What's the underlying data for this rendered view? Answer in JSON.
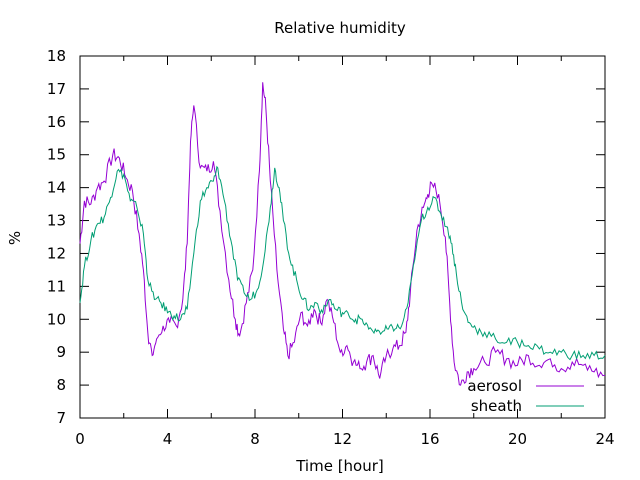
{
  "chart_data": {
    "type": "line",
    "title": "Relative humidity",
    "xlabel": "Time [hour]",
    "ylabel": "%",
    "xlim": [
      0,
      24
    ],
    "ylim": [
      7,
      18
    ],
    "xticks": [
      0,
      4,
      8,
      12,
      16,
      20,
      24
    ],
    "yticks": [
      7,
      8,
      9,
      10,
      11,
      12,
      13,
      14,
      15,
      16,
      17,
      18
    ],
    "grid": false,
    "legend_position": "bottom-right",
    "series": [
      {
        "name": "aerosol",
        "color": "#9400d3",
        "x": [
          0,
          0.2,
          0.5,
          0.8,
          1.1,
          1.5,
          1.8,
          2.1,
          2.4,
          2.7,
          2.9,
          3.1,
          3.3,
          3.5,
          3.8,
          4.1,
          4.4,
          4.7,
          4.9,
          5.05,
          5.2,
          5.5,
          5.8,
          6.1,
          6.4,
          6.8,
          7.1,
          7.3,
          7.6,
          7.9,
          8.2,
          8.35,
          8.5,
          8.7,
          9.0,
          9.3,
          9.5,
          9.8,
          10.1,
          10.4,
          10.7,
          11.0,
          11.3,
          11.6,
          11.9,
          12.2,
          12.5,
          12.8,
          13.1,
          13.4,
          13.7,
          14.0,
          14.3,
          14.6,
          14.9,
          15.1,
          15.4,
          15.7,
          15.9,
          16.1,
          16.4,
          16.7,
          16.9,
          17.1,
          17.4,
          17.7,
          18.0,
          18.5,
          19.0,
          19.5,
          20.0,
          20.5,
          21.0,
          21.5,
          22.0,
          22.5,
          23.0,
          23.5,
          24.0
        ],
        "values": [
          12.3,
          13.6,
          13.5,
          14.0,
          14.2,
          15.0,
          14.9,
          14.3,
          13.9,
          12.6,
          11.5,
          9.6,
          8.9,
          9.4,
          9.8,
          9.9,
          9.8,
          10.6,
          12.3,
          15.4,
          16.5,
          14.6,
          14.5,
          14.8,
          13.3,
          11.2,
          10.0,
          9.5,
          10.5,
          11.5,
          14.5,
          17.2,
          16.4,
          14.2,
          11.5,
          9.7,
          8.9,
          9.3,
          10.2,
          9.8,
          10.3,
          9.9,
          10.6,
          9.9,
          9.0,
          9.2,
          8.7,
          8.5,
          8.7,
          8.9,
          8.2,
          8.9,
          9.1,
          9.2,
          9.6,
          10.8,
          12.7,
          13.4,
          13.8,
          14.1,
          13.8,
          12.5,
          10.5,
          8.7,
          8.0,
          8.4,
          8.5,
          8.7,
          9.0,
          8.8,
          8.6,
          8.9,
          8.6,
          8.8,
          8.5,
          8.7,
          8.6,
          8.4,
          8.3
        ]
      },
      {
        "name": "sheath",
        "color": "#009e73",
        "x": [
          0,
          0.2,
          0.5,
          0.8,
          1.1,
          1.4,
          1.7,
          2.0,
          2.3,
          2.6,
          2.9,
          3.1,
          3.4,
          3.7,
          4.0,
          4.3,
          4.6,
          4.9,
          5.2,
          5.5,
          5.8,
          6.1,
          6.3,
          6.6,
          6.9,
          7.2,
          7.5,
          7.8,
          8.1,
          8.4,
          8.7,
          8.9,
          9.1,
          9.3,
          9.6,
          9.9,
          10.2,
          10.5,
          10.8,
          11.1,
          11.4,
          11.7,
          12.0,
          12.3,
          12.6,
          12.9,
          13.2,
          13.5,
          13.8,
          14.1,
          14.4,
          14.7,
          15.0,
          15.3,
          15.6,
          15.9,
          16.2,
          16.5,
          16.8,
          17.0,
          17.2,
          17.5,
          17.8,
          18.1,
          18.5,
          19.0,
          19.5,
          20.0,
          20.5,
          21.0,
          21.5,
          22.0,
          22.5,
          23.0,
          23.5,
          24.0
        ],
        "values": [
          10.5,
          11.6,
          12.4,
          12.9,
          13.1,
          13.7,
          14.5,
          14.4,
          13.6,
          13.4,
          12.6,
          11.2,
          10.6,
          10.5,
          10.2,
          10.1,
          10.0,
          10.3,
          12.0,
          13.6,
          14.0,
          14.2,
          14.6,
          13.6,
          12.4,
          11.2,
          10.8,
          10.6,
          10.9,
          11.8,
          13.4,
          14.6,
          14.0,
          13.0,
          11.8,
          11.2,
          10.6,
          10.3,
          10.5,
          10.2,
          10.6,
          10.3,
          10.2,
          10.1,
          10.0,
          10.0,
          9.7,
          9.7,
          9.6,
          9.7,
          9.7,
          9.8,
          10.5,
          11.8,
          13.0,
          13.4,
          13.7,
          13.2,
          12.8,
          12.3,
          11.4,
          10.3,
          9.9,
          9.7,
          9.6,
          9.4,
          9.3,
          9.3,
          9.2,
          9.1,
          9.0,
          9.0,
          8.9,
          8.9,
          8.9,
          8.9
        ]
      }
    ]
  }
}
